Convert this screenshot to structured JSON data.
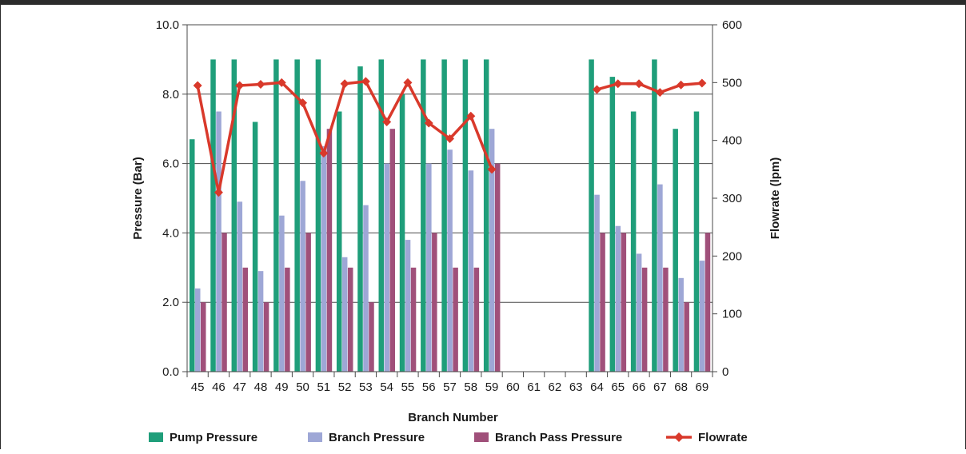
{
  "chart_data": {
    "type": "bar",
    "categories": [
      "45",
      "46",
      "47",
      "48",
      "49",
      "50",
      "51",
      "52",
      "53",
      "54",
      "55",
      "56",
      "57",
      "58",
      "59",
      "60",
      "61",
      "62",
      "63",
      "64",
      "65",
      "66",
      "67",
      "68",
      "69"
    ],
    "xlabel": "Branch Number",
    "ylabel": "Pressure (Bar)",
    "y2label": "Flowrate (lpm)",
    "ylim": [
      0,
      10
    ],
    "y2lim": [
      0,
      600
    ],
    "yticks": [
      "0.0",
      "2.0",
      "4.0",
      "6.0",
      "8.0",
      "10.0"
    ],
    "y2ticks": [
      "0",
      "100",
      "200",
      "300",
      "400",
      "500",
      "600"
    ],
    "grid": true,
    "legend_position": "bottom",
    "series": [
      {
        "name": "Pump Pressure",
        "type": "bar",
        "axis": "left",
        "color": "#1f9e7a",
        "values": [
          6.7,
          9.0,
          9.0,
          7.2,
          9.0,
          9.0,
          9.0,
          7.5,
          8.8,
          9.0,
          8.0,
          9.0,
          9.0,
          9.0,
          9.0,
          null,
          null,
          null,
          null,
          9.0,
          8.5,
          7.5,
          9.0,
          7.0,
          7.5
        ]
      },
      {
        "name": "Branch Pressure",
        "type": "bar",
        "axis": "left",
        "color": "#9ea7d6",
        "values": [
          2.4,
          7.5,
          4.9,
          2.9,
          4.5,
          5.5,
          6.5,
          3.3,
          4.8,
          6.0,
          3.8,
          6.0,
          6.4,
          5.8,
          7.0,
          null,
          null,
          null,
          null,
          5.1,
          4.2,
          3.4,
          5.4,
          2.7,
          3.2
        ]
      },
      {
        "name": "Branch Pass Pressure",
        "type": "bar",
        "axis": "left",
        "color": "#a0507a",
        "values": [
          2.0,
          4.0,
          3.0,
          2.0,
          3.0,
          4.0,
          7.0,
          3.0,
          2.0,
          7.0,
          3.0,
          4.0,
          3.0,
          3.0,
          6.0,
          null,
          null,
          null,
          null,
          4.0,
          4.0,
          3.0,
          3.0,
          2.0,
          4.0
        ]
      },
      {
        "name": "Flowrate",
        "type": "line",
        "axis": "right",
        "color": "#d9392b",
        "values": [
          495,
          310,
          495,
          497,
          500,
          465,
          378,
          498,
          502,
          432,
          500,
          430,
          403,
          442,
          350,
          null,
          null,
          null,
          null,
          488,
          498,
          498,
          483,
          496,
          499
        ]
      }
    ]
  }
}
